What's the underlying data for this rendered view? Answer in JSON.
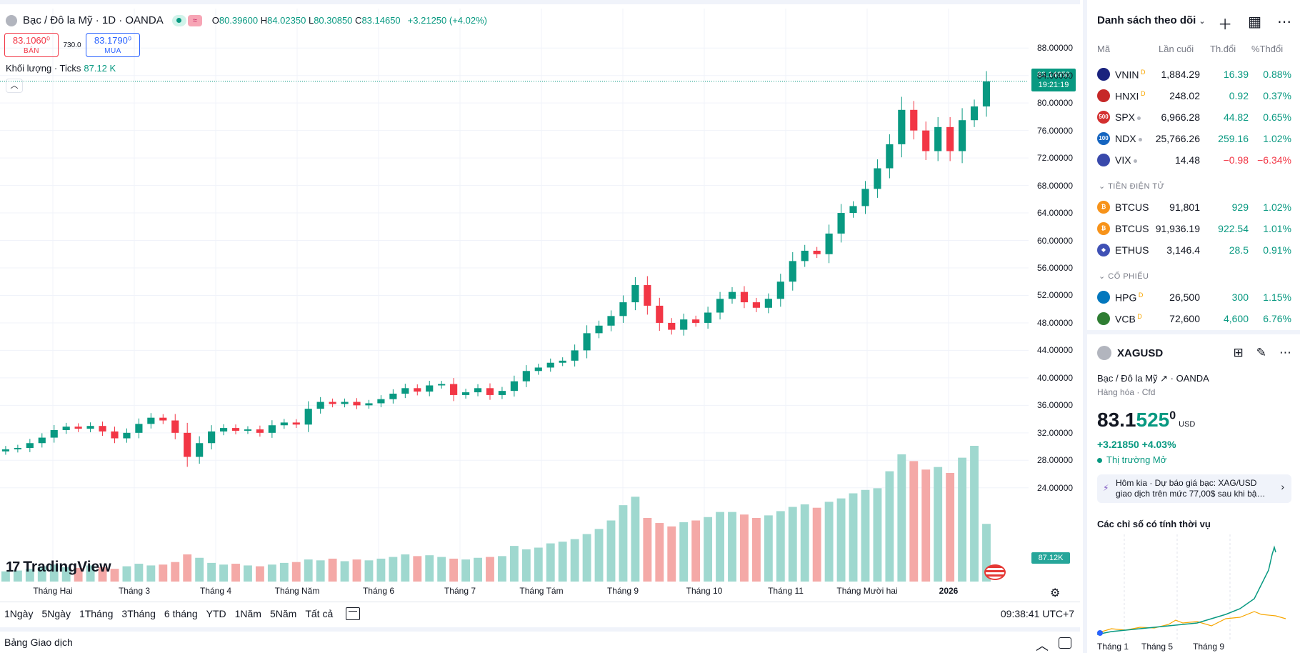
{
  "legend": {
    "title": "Bạc / Đô la Mỹ · 1D · OANDA",
    "eq_icon": "≈",
    "open_label": "O",
    "open": "80.39600",
    "high_label": "H",
    "high": "84.02350",
    "low_label": "L",
    "low": "80.30850",
    "close_label": "C",
    "close": "83.14650",
    "change": "+3.21250 (+4.02%)"
  },
  "bid_ask": {
    "bid": "83.1060⁰",
    "bid_label": "BÁN",
    "spread": "730.0",
    "ask": "83.1790⁰",
    "ask_label": "MUA"
  },
  "volume_legend": {
    "label": "Khối lượng · Ticks",
    "value": "87.12 K"
  },
  "logo": {
    "mark": "17",
    "text": "TradingView"
  },
  "price_label": {
    "price": "83.14650",
    "countdown": "19:21:19"
  },
  "volume_label": "87.12K",
  "y_axis": [
    {
      "label": "88.00000",
      "value": 88
    },
    {
      "label": "84.00000",
      "value": 84
    },
    {
      "label": "80.00000",
      "value": 80
    },
    {
      "label": "76.00000",
      "value": 76
    },
    {
      "label": "72.00000",
      "value": 72
    },
    {
      "label": "68.00000",
      "value": 68
    },
    {
      "label": "64.00000",
      "value": 64
    },
    {
      "label": "60.00000",
      "value": 60
    },
    {
      "label": "56.00000",
      "value": 56
    },
    {
      "label": "52.00000",
      "value": 52
    },
    {
      "label": "48.00000",
      "value": 48
    },
    {
      "label": "44.00000",
      "value": 44
    },
    {
      "label": "40.00000",
      "value": 40
    },
    {
      "label": "36.00000",
      "value": 36
    },
    {
      "label": "32.00000",
      "value": 32
    },
    {
      "label": "28.00000",
      "value": 28
    },
    {
      "label": "24.00000",
      "value": 24
    }
  ],
  "x_axis": [
    "Tháng Hai",
    "Tháng 3",
    "Tháng 4",
    "Tháng Năm",
    "Tháng 6",
    "Tháng 7",
    "Tháng Tám",
    "Tháng 9",
    "Tháng 10",
    "Tháng 11",
    "Tháng Mười hai",
    "2026"
  ],
  "ranges": [
    "1Ngày",
    "5Ngày",
    "1Tháng",
    "3Tháng",
    "6 tháng",
    "YTD",
    "1Năm",
    "5Năm",
    "Tất cả"
  ],
  "clock": "09:38:41 UTC+7",
  "trade_panel": "Bảng Giao dịch",
  "watchlist": {
    "title": "Danh sách theo dõi",
    "columns": {
      "sym": "Mã",
      "last": "Lần cuối",
      "chg": "Th.đổi",
      "pct": "%Thđổi"
    },
    "rows": [
      {
        "sym": "VNIN",
        "mark": "D",
        "last": "1,884.29",
        "chg": "16.39",
        "pct": "0.88%",
        "dir": "pos",
        "icon_color": "#1a237e",
        "icon_text": ""
      },
      {
        "sym": "HNXI",
        "mark": "D",
        "last": "248.02",
        "chg": "0.92",
        "pct": "0.37%",
        "dir": "pos",
        "icon_color": "#c62828",
        "icon_text": ""
      },
      {
        "sym": "SPX",
        "mark": "",
        "last": "6,966.28",
        "chg": "44.82",
        "pct": "0.65%",
        "dir": "pos",
        "icon_color": "#d32f2f",
        "icon_text": "500"
      },
      {
        "sym": "NDX",
        "mark": "",
        "last": "25,766.26",
        "chg": "259.16",
        "pct": "1.02%",
        "dir": "pos",
        "icon_color": "#1565c0",
        "icon_text": "100"
      },
      {
        "sym": "VIX",
        "mark": "",
        "last": "14.48",
        "chg": "−0.98",
        "pct": "−6.34%",
        "dir": "neg",
        "icon_color": "#3949ab",
        "icon_text": ""
      }
    ],
    "crypto_title": "TIỀN ĐIỆN TỬ",
    "crypto": [
      {
        "sym": "BTCUS",
        "mark": "",
        "last": "91,801",
        "chg": "929",
        "pct": "1.02%",
        "dir": "pos",
        "icon_color": "#f7931a",
        "icon_text": "₿"
      },
      {
        "sym": "BTCUS",
        "mark": "",
        "last": "91,936.19",
        "chg": "922.54",
        "pct": "1.01%",
        "dir": "pos",
        "icon_color": "#f7931a",
        "icon_text": "₿"
      },
      {
        "sym": "ETHUS",
        "mark": "",
        "last": "3,146.4",
        "chg": "28.5",
        "pct": "0.91%",
        "dir": "pos",
        "icon_color": "#3f51b5",
        "icon_text": "◆"
      }
    ],
    "stock_title": "CỔ PHIẾU",
    "stocks": [
      {
        "sym": "HPG",
        "mark": "D",
        "last": "26,500",
        "chg": "300",
        "pct": "1.15%",
        "dir": "pos",
        "icon_color": "#0277bd",
        "icon_text": ""
      },
      {
        "sym": "VCB",
        "mark": "D",
        "last": "72,600",
        "chg": "4,600",
        "pct": "6.76%",
        "dir": "pos",
        "icon_color": "#2e7d32",
        "icon_text": ""
      }
    ]
  },
  "detail": {
    "symbol": "XAGUSD",
    "name": "Bạc / Đô la Mỹ ↗ · OANDA",
    "category": "Hàng hóa · Cfd",
    "price_main": "83.1",
    "price_hl": "525",
    "price_sup": "0",
    "currency": "USD",
    "change": "+3.21850  +4.03%",
    "market": "Thị trường Mở",
    "news_line1": "Hôm kia · Dự báo giá bạc: XAG/USD",
    "news_line2": "giao dịch trên mức 77,00$ sau khi bậ…",
    "seasonal_title": "Các chỉ số có tính thời vụ",
    "seasonal_x": [
      "Tháng 1",
      "Tháng 5",
      "Tháng 9"
    ]
  },
  "chart_data": {
    "type": "candlestick",
    "title": "Bạc / Đô la Mỹ · 1D · OANDA",
    "ylim": [
      22,
      90
    ],
    "x": [
      "Tháng Hai",
      "Tháng 3",
      "Tháng 4",
      "Tháng Năm",
      "Tháng 6",
      "Tháng 7",
      "Tháng Tám",
      "Tháng 9",
      "Tháng 10",
      "Tháng 11",
      "Tháng Mười hai",
      "2026"
    ],
    "close_series": [
      29.6,
      29.8,
      30.5,
      31.3,
      32.4,
      32.9,
      32.6,
      33.0,
      32.2,
      31.2,
      32.0,
      33.3,
      34.2,
      33.8,
      32.0,
      28.5,
      30.5,
      32.2,
      32.7,
      32.3,
      32.5,
      32.0,
      33.1,
      33.5,
      33.2,
      35.5,
      36.5,
      36.2,
      36.5,
      36.0,
      36.3,
      36.9,
      37.7,
      38.5,
      38.0,
      38.9,
      39.1,
      37.5,
      37.9,
      38.5,
      37.5,
      38.1,
      39.5,
      41.0,
      41.5,
      42.2,
      42.5,
      44.0,
      46.5,
      47.6,
      49.0,
      51.0,
      53.5,
      50.5,
      48.0,
      47.0,
      48.5,
      48.0,
      49.5,
      51.5,
      52.5,
      51.0,
      50.2,
      51.5,
      54.0,
      57.0,
      58.5,
      58.0,
      61.0,
      64.0,
      65.0,
      67.5,
      70.5,
      74.0,
      79.0,
      76.0,
      73.0,
      76.5,
      73.0,
      77.5,
      79.5,
      83.1465
    ],
    "volume_series": [
      120,
      130,
      150,
      180,
      200,
      170,
      160,
      190,
      170,
      150,
      180,
      210,
      190,
      200,
      230,
      320,
      280,
      220,
      200,
      210,
      190,
      180,
      200,
      220,
      230,
      260,
      250,
      270,
      240,
      260,
      250,
      270,
      290,
      320,
      300,
      310,
      290,
      270,
      260,
      280,
      290,
      300,
      420,
      380,
      400,
      450,
      470,
      500,
      560,
      620,
      720,
      900,
      1000,
      750,
      690,
      650,
      700,
      720,
      760,
      820,
      820,
      790,
      750,
      780,
      830,
      880,
      910,
      870,
      940,
      980,
      1040,
      1080,
      1100,
      1300,
      1500,
      1420,
      1320,
      1350,
      1280,
      1460,
      1600,
      680
    ],
    "last_price": 83.1465,
    "last_volume": "87.12K"
  }
}
